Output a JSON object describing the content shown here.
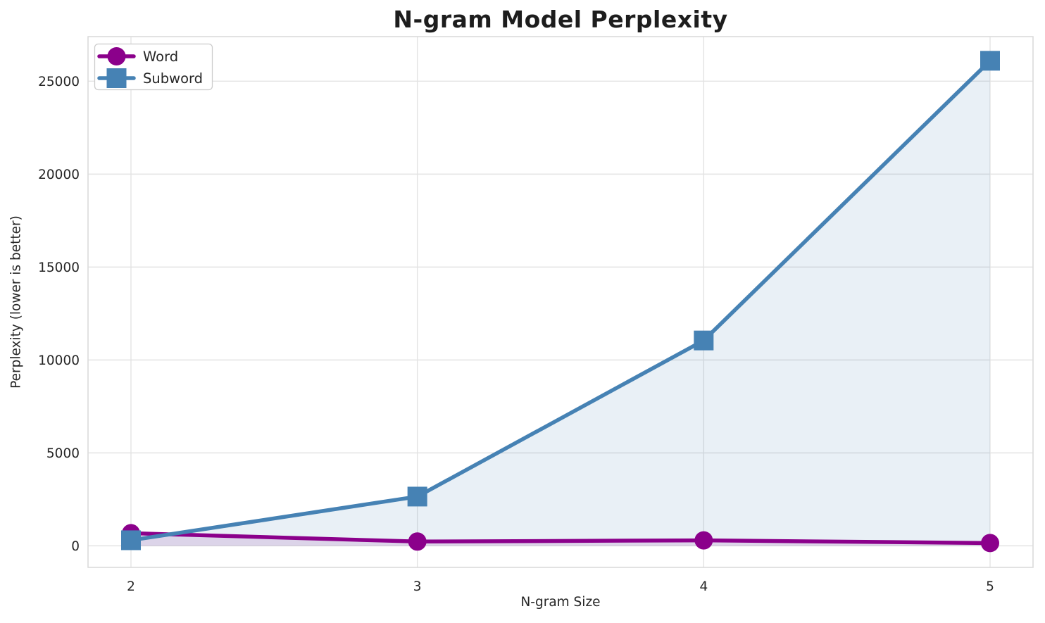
{
  "chart_data": {
    "type": "line",
    "title": "N-gram Model Perplexity",
    "xlabel": "N-gram Size",
    "ylabel": "Perplexity (lower is better)",
    "x": [
      2,
      3,
      4,
      5
    ],
    "xtick_labels": [
      "2",
      "3",
      "4",
      "5"
    ],
    "yticks": [
      0,
      5000,
      10000,
      15000,
      20000,
      25000
    ],
    "ytick_labels": [
      "0",
      "5000",
      "10000",
      "15000",
      "20000",
      "25000"
    ],
    "xlim": [
      1.85,
      5.15
    ],
    "ylim": [
      -1160,
      27400
    ],
    "grid": true,
    "legend_position": "upper-left",
    "series": [
      {
        "name": "Word",
        "marker": "circle",
        "color": "#8B008B",
        "fill": "rgba(139,0,139,0.12)",
        "values": [
          680,
          230,
          295,
          150
        ]
      },
      {
        "name": "Subword",
        "marker": "square",
        "color": "#4682B4",
        "fill": "rgba(70,130,180,0.12)",
        "values": [
          300,
          2650,
          11050,
          26100
        ]
      }
    ]
  },
  "style_colors": {
    "background": "#ffffff",
    "grid": "#e3e3e3",
    "spine": "#d9d9d9",
    "text": "#262626",
    "legend_border": "#cccccc",
    "legend_background": "#ffffff"
  }
}
